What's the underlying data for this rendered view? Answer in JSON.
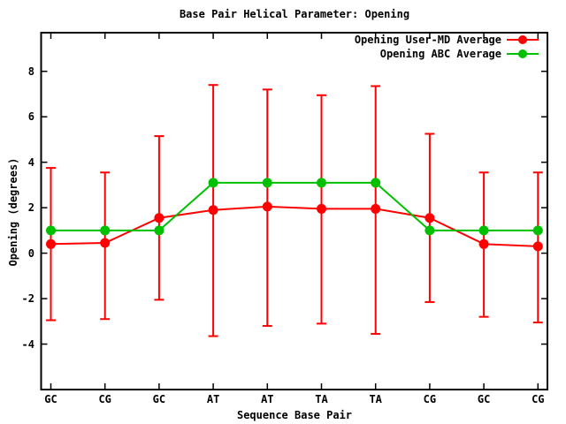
{
  "window": {
    "background": "#ffffff"
  },
  "chart_data": {
    "type": "line",
    "title": "Base Pair Helical Parameter: Opening",
    "xlabel": "Sequence Base Pair",
    "ylabel": "Opening (degrees)",
    "categories": [
      "GC",
      "CG",
      "GC",
      "AT",
      "AT",
      "TA",
      "TA",
      "CG",
      "GC",
      "CG"
    ],
    "y_ticks": [
      -4,
      -2,
      0,
      2,
      4,
      6,
      8
    ],
    "ylim": [
      -6.0,
      9.7
    ],
    "grid": false,
    "legend_position": "top-right-inside",
    "axis_color": "#000000",
    "text_color": "#000000",
    "series": [
      {
        "name": "Opening User-MD Average",
        "color": "#ff0000",
        "marker": "filled-circle",
        "style": "line-with-yerrorbars",
        "values": [
          0.4,
          0.45,
          1.55,
          1.9,
          2.05,
          1.95,
          1.95,
          1.55,
          0.4,
          0.3
        ],
        "err_high": [
          3.75,
          3.55,
          5.15,
          7.4,
          7.2,
          6.95,
          7.35,
          5.25,
          3.55,
          3.55
        ],
        "err_low": [
          -2.95,
          -2.9,
          -2.05,
          -3.65,
          -3.2,
          -3.1,
          -3.55,
          -2.15,
          -2.8,
          -3.05
        ]
      },
      {
        "name": "Opening ABC Average",
        "color": "#00c000",
        "marker": "filled-circle",
        "style": "line",
        "values": [
          1.0,
          1.0,
          1.0,
          3.1,
          3.1,
          3.1,
          3.1,
          1.0,
          1.0,
          1.0
        ]
      }
    ]
  }
}
